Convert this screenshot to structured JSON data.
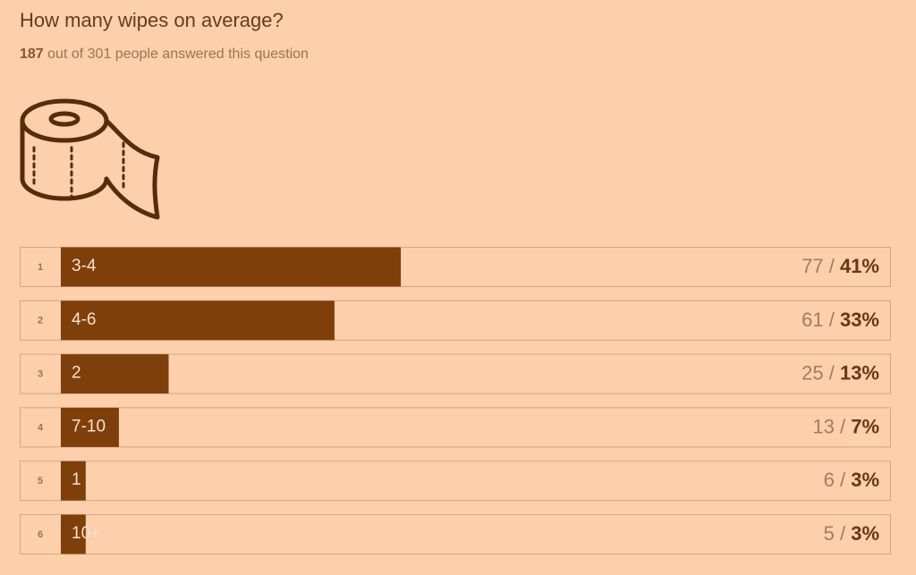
{
  "chart_data": {
    "type": "bar",
    "orientation": "horizontal",
    "title": "How many wipes on average?",
    "answered": 187,
    "subtitle_mid": "out of",
    "total": 301,
    "subtitle_end": "people answered this question",
    "ranks": [
      1,
      2,
      3,
      4,
      5,
      6
    ],
    "categories": [
      "3-4",
      "4-6",
      "2",
      "7-10",
      "1",
      "10+"
    ],
    "counts": [
      77,
      61,
      25,
      13,
      6,
      5
    ],
    "separator": "/",
    "values": [
      41,
      33,
      13,
      7,
      3,
      3
    ],
    "value_labels": [
      "41%",
      "33%",
      "13%",
      "7%",
      "3%",
      "3%"
    ],
    "xlim": [
      0,
      100
    ],
    "color": "#7f3f0b"
  }
}
